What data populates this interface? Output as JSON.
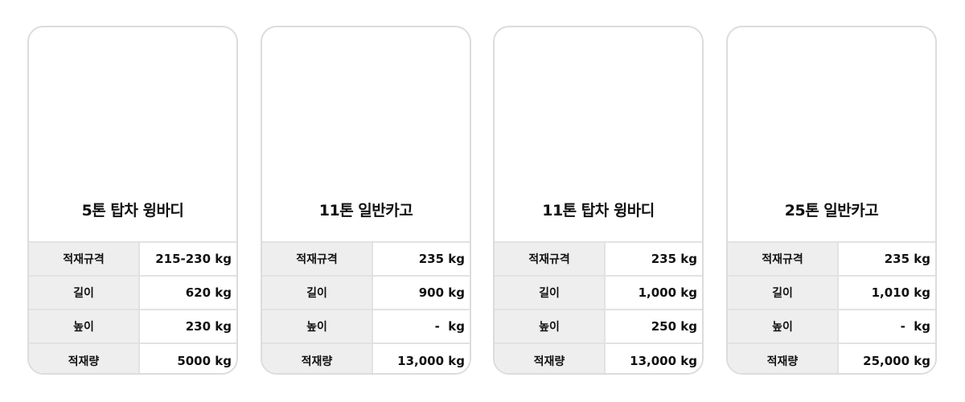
{
  "cards": [
    {
      "title": "5톤 탑차 윙바디",
      "specs": [
        {
          "label": "적재규격",
          "value": "215-230 kg"
        },
        {
          "label": "길이",
          "value": "620 kg"
        },
        {
          "label": "높이",
          "value": "230 kg"
        },
        {
          "label": "적재량",
          "value": "5000 kg"
        }
      ]
    },
    {
      "title": "11톤 일반카고",
      "specs": [
        {
          "label": "적재규격",
          "value": "235 kg"
        },
        {
          "label": "길이",
          "value": "900 kg"
        },
        {
          "label": "높이",
          "value": "-  kg"
        },
        {
          "label": "적재량",
          "value": "13,000 kg"
        }
      ]
    },
    {
      "title": "11톤 탑차 윙바디",
      "specs": [
        {
          "label": "적재규격",
          "value": "235 kg"
        },
        {
          "label": "길이",
          "value": "1,000 kg"
        },
        {
          "label": "높이",
          "value": "250 kg"
        },
        {
          "label": "적재량",
          "value": "13,000 kg"
        }
      ]
    },
    {
      "title": "25톤 일반카고",
      "specs": [
        {
          "label": "적재규격",
          "value": "235 kg"
        },
        {
          "label": "길이",
          "value": "1,010 kg"
        },
        {
          "label": "높이",
          "value": "-  kg"
        },
        {
          "label": "적재량",
          "value": "25,000 kg"
        }
      ]
    }
  ]
}
